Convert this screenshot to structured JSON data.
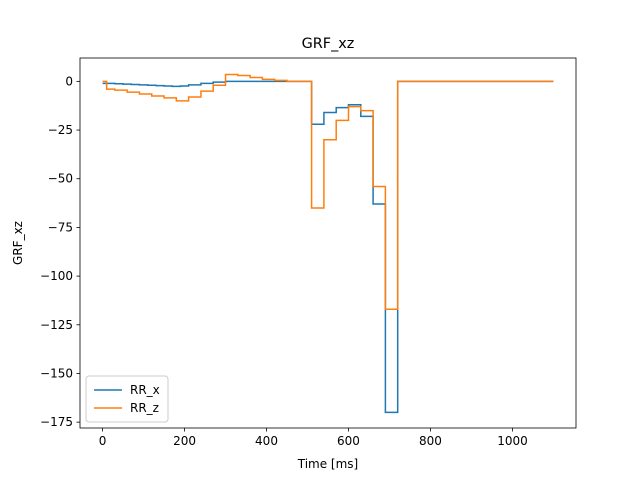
{
  "chart_data": {
    "type": "line",
    "title": "GRF_xz",
    "xlabel": "Time [ms]",
    "ylabel": "GRF_xz",
    "xlim": [
      -55,
      1155
    ],
    "ylim": [
      -178,
      12
    ],
    "xticks": [
      0,
      200,
      400,
      600,
      800,
      1000
    ],
    "xtick_labels": [
      "0",
      "200",
      "400",
      "600",
      "800",
      "1000"
    ],
    "yticks": [
      0,
      -25,
      -50,
      -75,
      -100,
      -125,
      -150,
      -175
    ],
    "ytick_labels": [
      "0",
      "−25",
      "−50",
      "−75",
      "−100",
      "−125",
      "−150",
      "−175"
    ],
    "grid": false,
    "legend": "lower-left",
    "step": true,
    "series": [
      {
        "name": "RR_x",
        "color": "#1f77b4",
        "x": [
          0,
          10,
          30,
          50,
          70,
          90,
          110,
          130,
          150,
          170,
          190,
          210,
          240,
          270,
          300,
          330,
          360,
          390,
          420,
          450,
          510,
          540,
          570,
          600,
          630,
          660,
          690,
          720,
          1100
        ],
        "y": [
          -1,
          -1,
          -1.2,
          -1.4,
          -1.6,
          -1.8,
          -2,
          -2.2,
          -2.4,
          -2.6,
          -2.4,
          -1.8,
          -1,
          -0.4,
          0,
          0,
          0,
          0,
          0,
          0,
          -22,
          -16,
          -13.5,
          -12,
          -18,
          -63,
          -170,
          0,
          0
        ]
      },
      {
        "name": "RR_z",
        "color": "#ff7f0e",
        "x": [
          0,
          10,
          30,
          60,
          90,
          120,
          150,
          180,
          210,
          240,
          270,
          300,
          330,
          360,
          390,
          420,
          450,
          510,
          540,
          570,
          600,
          630,
          660,
          690,
          720,
          1100
        ],
        "y": [
          0,
          -4,
          -4.5,
          -5.5,
          -6.5,
          -7.5,
          -8.5,
          -10,
          -8,
          -5,
          -2,
          3.5,
          3,
          2,
          1,
          0.5,
          0,
          -65,
          -30,
          -20,
          -13,
          -15,
          -54,
          -117,
          0,
          0
        ]
      }
    ]
  }
}
